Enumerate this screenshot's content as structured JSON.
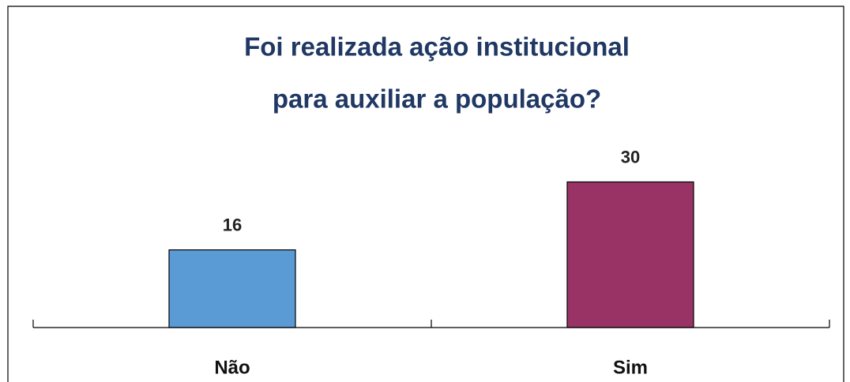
{
  "chart_data": {
    "type": "bar",
    "title": [
      "Foi realizada ação institucional",
      "para auxiliar a população?"
    ],
    "categories": [
      "Não",
      "Sim"
    ],
    "values": [
      16,
      30
    ],
    "colors": [
      "#5b9bd5",
      "#993366"
    ]
  }
}
